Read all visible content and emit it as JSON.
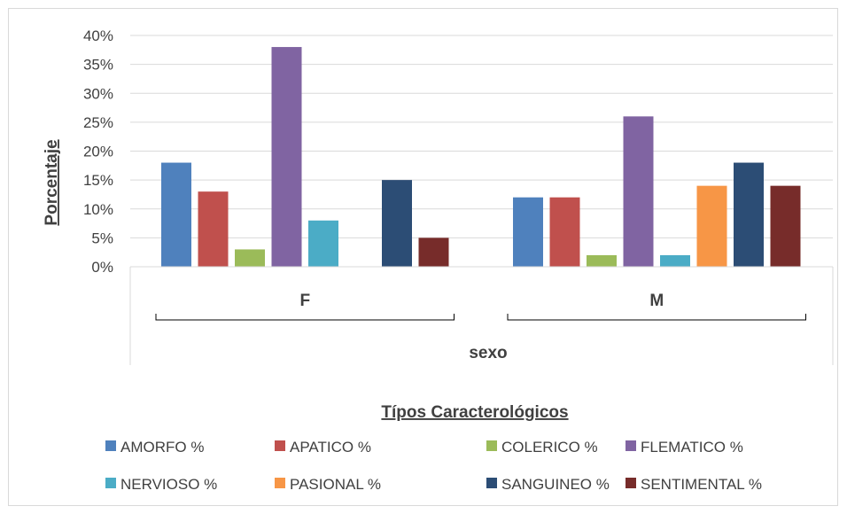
{
  "chart_data": {
    "type": "bar",
    "categories": [
      "F",
      "M"
    ],
    "xlabel": "sexo",
    "ylabel": "Porcentaje",
    "ylim": [
      0,
      40
    ],
    "yticks": [
      "0%",
      "5%",
      "10%",
      "15%",
      "20%",
      "25%",
      "30%",
      "35%",
      "40%"
    ],
    "grid": true,
    "legend_title": "Típos Caracterológicos",
    "legend_position": "bottom",
    "series": [
      {
        "name": "AMORFO %",
        "color": "#4f81bd",
        "values": [
          18,
          12
        ]
      },
      {
        "name": "APATICO %",
        "color": "#c0504d",
        "values": [
          13,
          12
        ]
      },
      {
        "name": "COLERICO %",
        "color": "#9bbb59",
        "values": [
          3,
          2
        ]
      },
      {
        "name": "FLEMATICO %",
        "color": "#8064a2",
        "values": [
          38,
          26
        ]
      },
      {
        "name": "NERVIOSO %",
        "color": "#4bacc6",
        "values": [
          8,
          2
        ]
      },
      {
        "name": "PASIONAL %",
        "color": "#f79646",
        "values": [
          0,
          14
        ]
      },
      {
        "name": "SANGUINEO %",
        "color": "#2c4d75",
        "values": [
          15,
          18
        ]
      },
      {
        "name": "SENTIMENTAL %",
        "color": "#772c2a",
        "values": [
          5,
          14
        ]
      }
    ]
  }
}
